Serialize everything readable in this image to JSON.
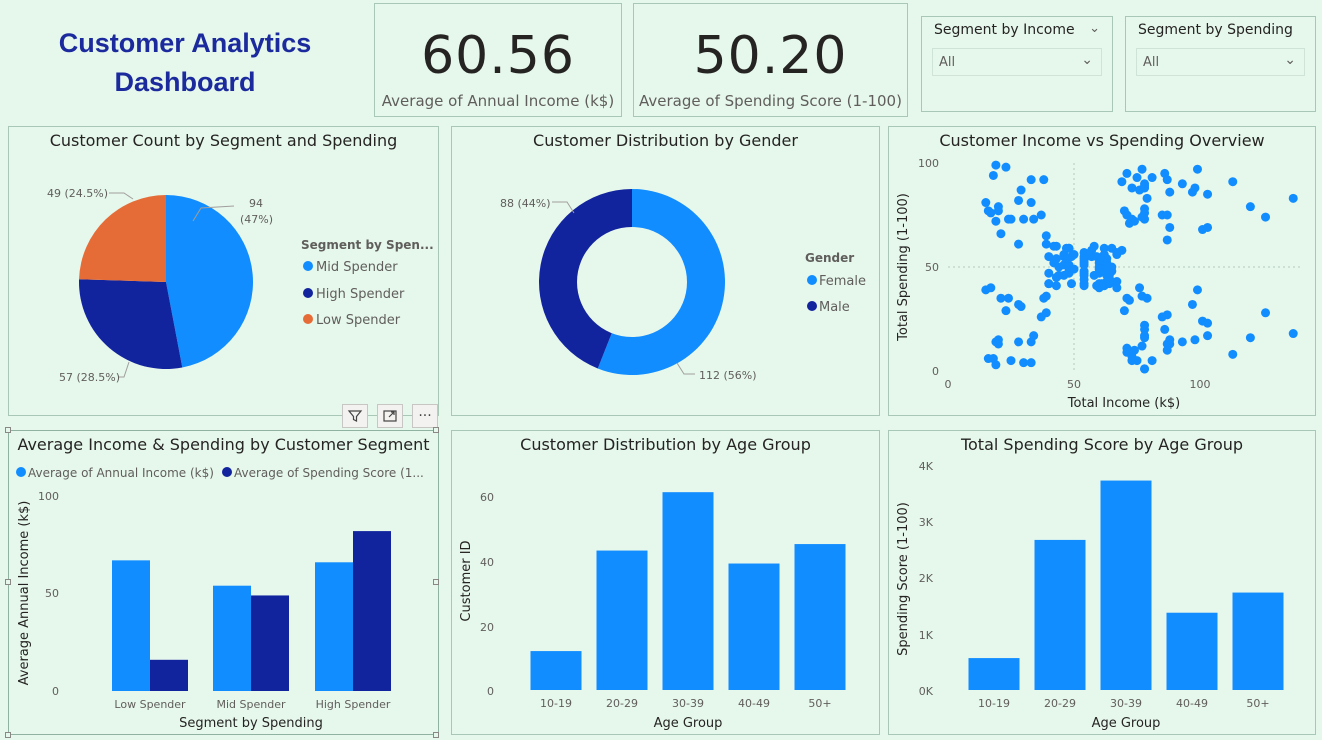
{
  "header": {
    "title": "Customer Analytics Dashboard"
  },
  "kpis": [
    {
      "value": "60.56",
      "label": "Average of Annual Income (k$)"
    },
    {
      "value": "50.20",
      "label": "Average of Spending Score (1-100)"
    }
  ],
  "slicers": [
    {
      "title": "Segment by Income",
      "value": "All"
    },
    {
      "title": "Segment by Spending",
      "value": "All"
    }
  ],
  "visual_header": {
    "filter_icon": "filter-icon",
    "focus_icon": "focus-mode-icon",
    "more_icon": "more-options-icon",
    "more_glyph": "···"
  },
  "colors": {
    "light_blue": "#118dff",
    "dark_blue": "#12239e",
    "orange": "#e66c37",
    "background": "#e6f7ec"
  },
  "chart_data": [
    {
      "id": "pie_segment",
      "type": "pie",
      "title": "Customer Count by Segment and Spending",
      "legend_title": "Segment by Spen...",
      "legend_position": "right",
      "slices": [
        {
          "name": "Mid Spender",
          "value": 94,
          "label_line1": "94",
          "label_line2": "(47%)",
          "color": "#118dff"
        },
        {
          "name": "High Spender",
          "value": 57,
          "label_line1": "57 (28.5%)",
          "color": "#12239e"
        },
        {
          "name": "Low Spender",
          "value": 49,
          "label_line1": "49 (24.5%)",
          "color": "#e66c37"
        }
      ]
    },
    {
      "id": "donut_gender",
      "type": "pie",
      "subtype": "donut",
      "title": "Customer Distribution by Gender",
      "legend_title": "Gender",
      "legend_position": "right",
      "slices": [
        {
          "name": "Female",
          "value": 112,
          "label": "112 (56%)",
          "color": "#118dff"
        },
        {
          "name": "Male",
          "value": 88,
          "label": "88 (44%)",
          "color": "#12239e"
        }
      ]
    },
    {
      "id": "scatter_income_spending",
      "type": "scatter",
      "title": "Customer Income vs Spending Overview",
      "xlabel": "Total Income (k$)",
      "ylabel": "Total Spending (1-100)",
      "xlim": [
        0,
        140
      ],
      "ylim": [
        0,
        100
      ],
      "xticks": [
        "0",
        "50",
        "100"
      ],
      "yticks": [
        "0",
        "50",
        "100"
      ],
      "points": [
        [
          15,
          39
        ],
        [
          15,
          81
        ],
        [
          16,
          6
        ],
        [
          16,
          77
        ],
        [
          17,
          40
        ],
        [
          17,
          76
        ],
        [
          18,
          6
        ],
        [
          18,
          94
        ],
        [
          19,
          3
        ],
        [
          19,
          72
        ],
        [
          19,
          14
        ],
        [
          19,
          99
        ],
        [
          20,
          15
        ],
        [
          20,
          77
        ],
        [
          20,
          13
        ],
        [
          20,
          79
        ],
        [
          21,
          35
        ],
        [
          21,
          66
        ],
        [
          23,
          29
        ],
        [
          23,
          98
        ],
        [
          24,
          35
        ],
        [
          24,
          73
        ],
        [
          25,
          5
        ],
        [
          25,
          73
        ],
        [
          28,
          14
        ],
        [
          28,
          82
        ],
        [
          28,
          32
        ],
        [
          28,
          61
        ],
        [
          29,
          31
        ],
        [
          29,
          87
        ],
        [
          30,
          4
        ],
        [
          30,
          73
        ],
        [
          33,
          4
        ],
        [
          33,
          92
        ],
        [
          33,
          14
        ],
        [
          33,
          81
        ],
        [
          34,
          17
        ],
        [
          34,
          73
        ],
        [
          37,
          26
        ],
        [
          37,
          75
        ],
        [
          38,
          35
        ],
        [
          38,
          92
        ],
        [
          39,
          36
        ],
        [
          39,
          61
        ],
        [
          39,
          28
        ],
        [
          39,
          65
        ],
        [
          40,
          55
        ],
        [
          40,
          47
        ],
        [
          40,
          42
        ],
        [
          40,
          42
        ],
        [
          42,
          52
        ],
        [
          42,
          60
        ],
        [
          43,
          54
        ],
        [
          43,
          60
        ],
        [
          43,
          45
        ],
        [
          43,
          41
        ],
        [
          44,
          50
        ],
        [
          44,
          46
        ],
        [
          46,
          51
        ],
        [
          46,
          46
        ],
        [
          46,
          56
        ],
        [
          46,
          55
        ],
        [
          47,
          52
        ],
        [
          47,
          59
        ],
        [
          48,
          51
        ],
        [
          48,
          59
        ],
        [
          48,
          50
        ],
        [
          48,
          48
        ],
        [
          48,
          59
        ],
        [
          48,
          47
        ],
        [
          49,
          55
        ],
        [
          49,
          42
        ],
        [
          50,
          49
        ],
        [
          50,
          56
        ],
        [
          54,
          47
        ],
        [
          54,
          54
        ],
        [
          54,
          53
        ],
        [
          54,
          48
        ],
        [
          54,
          52
        ],
        [
          54,
          42
        ],
        [
          54,
          51
        ],
        [
          54,
          55
        ],
        [
          54,
          41
        ],
        [
          54,
          44
        ],
        [
          54,
          57
        ],
        [
          54,
          46
        ],
        [
          57,
          58
        ],
        [
          57,
          55
        ],
        [
          58,
          60
        ],
        [
          58,
          46
        ],
        [
          59,
          55
        ],
        [
          59,
          41
        ],
        [
          60,
          49
        ],
        [
          60,
          40
        ],
        [
          60,
          42
        ],
        [
          60,
          52
        ],
        [
          60,
          47
        ],
        [
          60,
          50
        ],
        [
          61,
          42
        ],
        [
          61,
          49
        ],
        [
          62,
          41
        ],
        [
          62,
          48
        ],
        [
          62,
          59
        ],
        [
          62,
          55
        ],
        [
          62,
          56
        ],
        [
          62,
          42
        ],
        [
          63,
          50
        ],
        [
          63,
          46
        ],
        [
          63,
          43
        ],
        [
          63,
          48
        ],
        [
          63,
          52
        ],
        [
          63,
          54
        ],
        [
          64,
          42
        ],
        [
          64,
          46
        ],
        [
          65,
          48
        ],
        [
          65,
          50
        ],
        [
          65,
          43
        ],
        [
          65,
          59
        ],
        [
          67,
          43
        ],
        [
          67,
          57
        ],
        [
          67,
          56
        ],
        [
          67,
          40
        ],
        [
          69,
          58
        ],
        [
          69,
          91
        ],
        [
          70,
          29
        ],
        [
          70,
          77
        ],
        [
          71,
          35
        ],
        [
          71,
          95
        ],
        [
          71,
          11
        ],
        [
          71,
          75
        ],
        [
          71,
          9
        ],
        [
          71,
          75
        ],
        [
          72,
          34
        ],
        [
          72,
          71
        ],
        [
          73,
          5
        ],
        [
          73,
          88
        ],
        [
          73,
          7
        ],
        [
          73,
          73
        ],
        [
          74,
          10
        ],
        [
          74,
          72
        ],
        [
          75,
          5
        ],
        [
          75,
          93
        ],
        [
          76,
          40
        ],
        [
          76,
          87
        ],
        [
          77,
          12
        ],
        [
          77,
          97
        ],
        [
          77,
          36
        ],
        [
          77,
          74
        ],
        [
          78,
          22
        ],
        [
          78,
          90
        ],
        [
          78,
          17
        ],
        [
          78,
          88
        ],
        [
          78,
          20
        ],
        [
          78,
          76
        ],
        [
          78,
          16
        ],
        [
          78,
          89
        ],
        [
          78,
          1
        ],
        [
          78,
          78
        ],
        [
          78,
          1
        ],
        [
          78,
          73
        ],
        [
          79,
          35
        ],
        [
          79,
          83
        ],
        [
          81,
          5
        ],
        [
          81,
          93
        ],
        [
          85,
          26
        ],
        [
          85,
          75
        ],
        [
          86,
          20
        ],
        [
          86,
          95
        ],
        [
          87,
          27
        ],
        [
          87,
          63
        ],
        [
          87,
          13
        ],
        [
          87,
          75
        ],
        [
          87,
          10
        ],
        [
          87,
          92
        ],
        [
          88,
          13
        ],
        [
          88,
          86
        ],
        [
          88,
          15
        ],
        [
          88,
          69
        ],
        [
          93,
          14
        ],
        [
          93,
          90
        ],
        [
          97,
          32
        ],
        [
          97,
          86
        ],
        [
          98,
          15
        ],
        [
          98,
          88
        ],
        [
          99,
          39
        ],
        [
          99,
          97
        ],
        [
          101,
          24
        ],
        [
          101,
          68
        ],
        [
          103,
          17
        ],
        [
          103,
          85
        ],
        [
          103,
          23
        ],
        [
          103,
          69
        ],
        [
          113,
          8
        ],
        [
          113,
          91
        ],
        [
          120,
          16
        ],
        [
          120,
          79
        ],
        [
          126,
          28
        ],
        [
          126,
          74
        ],
        [
          137,
          18
        ],
        [
          137,
          83
        ]
      ]
    },
    {
      "id": "bar_avg_by_segment",
      "type": "bar",
      "title": "Average Income & Spending by Customer Segment",
      "xlabel": "Segment by Spending",
      "ylabel": "Average Annual Income (k$)",
      "ylim": [
        0,
        100
      ],
      "yticks": [
        "0",
        "50",
        "100"
      ],
      "legend_position": "top-left",
      "categories": [
        "Low Spender",
        "Mid Spender",
        "High Spender"
      ],
      "series": [
        {
          "name": "Average of Annual Income (k$)",
          "color": "#118dff",
          "values": [
            67,
            54,
            66
          ]
        },
        {
          "name": "Average of Spending Score (1...",
          "color": "#12239e",
          "values": [
            16,
            49,
            82
          ]
        }
      ]
    },
    {
      "id": "bar_age_distribution",
      "type": "bar",
      "title": "Customer Distribution by Age Group",
      "xlabel": "Age Group",
      "ylabel": "Customer ID",
      "ylim": [
        0,
        70
      ],
      "yticks": [
        "0",
        "20",
        "40",
        "60"
      ],
      "categories": [
        "10-19",
        "20-29",
        "30-39",
        "40-49",
        "50+"
      ],
      "values": [
        12,
        43,
        61,
        39,
        45
      ]
    },
    {
      "id": "bar_spending_by_age",
      "type": "bar",
      "title": "Total Spending Score by Age Group",
      "xlabel": "Age Group",
      "ylabel": "Spending Score (1-100)",
      "ylim": [
        0,
        4000
      ],
      "yticks": [
        "0K",
        "1K",
        "2K",
        "3K",
        "4K"
      ],
      "categories": [
        "10-19",
        "20-29",
        "30-39",
        "40-49",
        "50+"
      ],
      "values": [
        570,
        2680,
        3740,
        1380,
        1740
      ]
    }
  ]
}
